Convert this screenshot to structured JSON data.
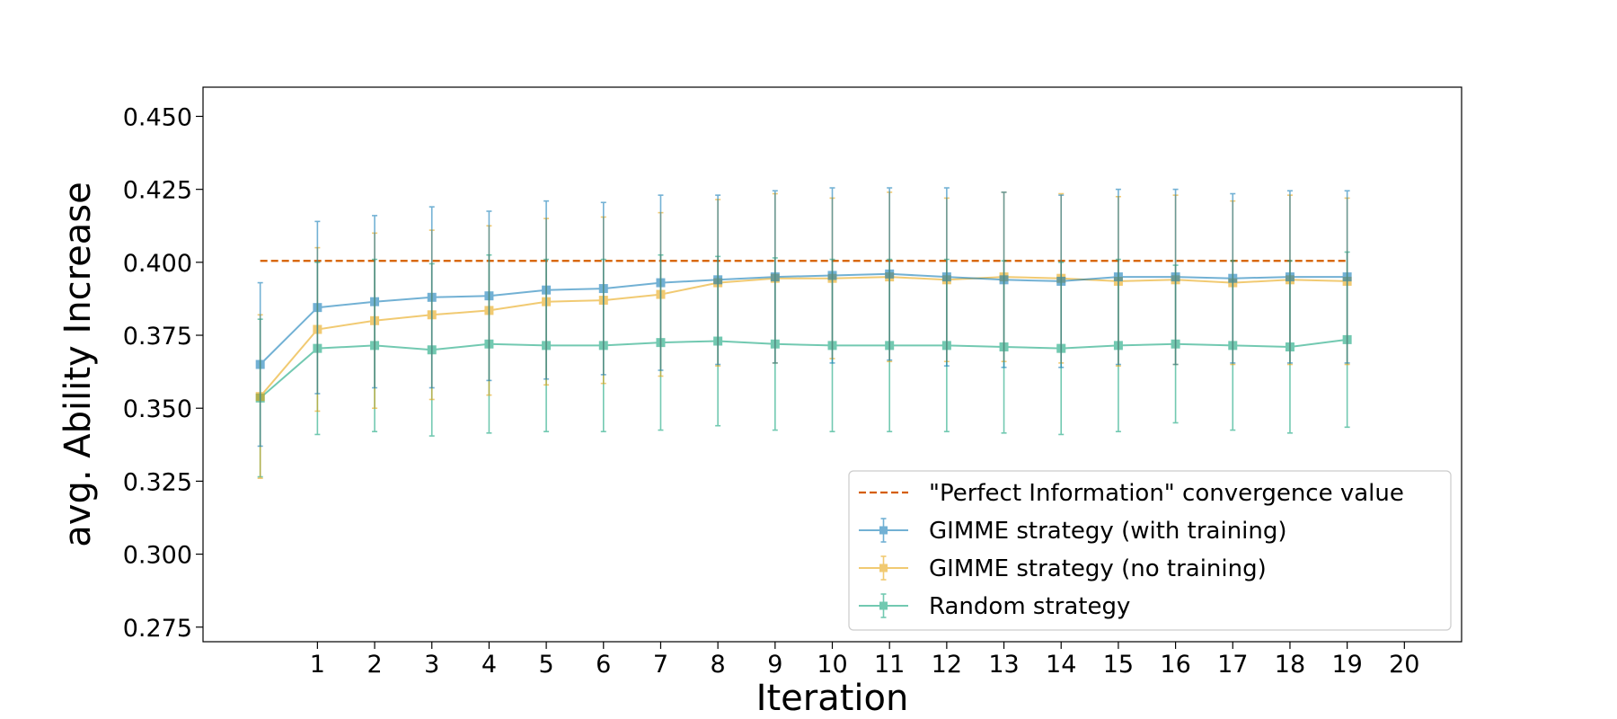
{
  "chart_data": {
    "type": "line",
    "title": "",
    "xlabel": "Iteration",
    "ylabel": "avg. Ability Increase",
    "xlim": [
      -1,
      21
    ],
    "ylim": [
      0.27,
      0.46
    ],
    "x_ticks": [
      1,
      2,
      3,
      4,
      5,
      6,
      7,
      8,
      9,
      10,
      11,
      12,
      13,
      14,
      15,
      16,
      17,
      18,
      19,
      20
    ],
    "x_tick_labels": [
      "1",
      "2",
      "3",
      "4",
      "5",
      "6",
      "7",
      "8",
      "9",
      "10",
      "11",
      "12",
      "13",
      "14",
      "15",
      "16",
      "17",
      "18",
      "19",
      "20"
    ],
    "y_ticks": [
      0.275,
      0.3,
      0.325,
      0.35,
      0.375,
      0.4,
      0.425,
      0.45
    ],
    "y_tick_labels": [
      "0.275",
      "0.300",
      "0.325",
      "0.350",
      "0.375",
      "0.400",
      "0.425",
      "0.450"
    ],
    "grid": false,
    "legend_position": "lower-right",
    "x": [
      0,
      1,
      2,
      3,
      4,
      5,
      6,
      7,
      8,
      9,
      10,
      11,
      12,
      13,
      14,
      15,
      16,
      17,
      18,
      19
    ],
    "reference_line": {
      "name": "\"Perfect Information\" convergence value",
      "value": 0.4005,
      "x_range": [
        0,
        19
      ],
      "color": "#d55e00",
      "style": "dashed"
    },
    "series": [
      {
        "name": "GIMME strategy (with training)",
        "color": "#0072b2",
        "marker": "square",
        "values": [
          0.365,
          0.3845,
          0.3865,
          0.388,
          0.3885,
          0.3905,
          0.391,
          0.393,
          0.394,
          0.395,
          0.3955,
          0.396,
          0.395,
          0.394,
          0.3935,
          0.395,
          0.395,
          0.3945,
          0.395,
          0.395
        ],
        "errors": [
          0.028,
          0.0295,
          0.0295,
          0.031,
          0.029,
          0.0305,
          0.0295,
          0.03,
          0.029,
          0.0295,
          0.03,
          0.0295,
          0.0305,
          0.03,
          0.0295,
          0.03,
          0.03,
          0.029,
          0.0295,
          0.0295
        ]
      },
      {
        "name": "GIMME strategy (no training)",
        "color": "#e69f00",
        "marker": "square",
        "values": [
          0.354,
          0.377,
          0.38,
          0.382,
          0.3835,
          0.3865,
          0.387,
          0.389,
          0.393,
          0.3945,
          0.3945,
          0.395,
          0.394,
          0.395,
          0.3945,
          0.3935,
          0.394,
          0.393,
          0.394,
          0.3935
        ],
        "errors": [
          0.028,
          0.028,
          0.03,
          0.029,
          0.029,
          0.0285,
          0.0285,
          0.028,
          0.0285,
          0.029,
          0.0275,
          0.029,
          0.028,
          0.029,
          0.029,
          0.029,
          0.029,
          0.028,
          0.029,
          0.0285
        ]
      },
      {
        "name": "Random strategy",
        "color": "#009e73",
        "marker": "square",
        "values": [
          0.3535,
          0.3705,
          0.3715,
          0.37,
          0.372,
          0.3715,
          0.3715,
          0.3725,
          0.373,
          0.372,
          0.3715,
          0.3715,
          0.3715,
          0.371,
          0.3705,
          0.3715,
          0.372,
          0.3715,
          0.371,
          0.3735
        ],
        "errors": [
          0.027,
          0.0295,
          0.0295,
          0.0295,
          0.0305,
          0.0295,
          0.0295,
          0.03,
          0.029,
          0.0295,
          0.0295,
          0.0295,
          0.0295,
          0.0295,
          0.0295,
          0.0295,
          0.027,
          0.029,
          0.0295,
          0.03
        ]
      }
    ]
  }
}
